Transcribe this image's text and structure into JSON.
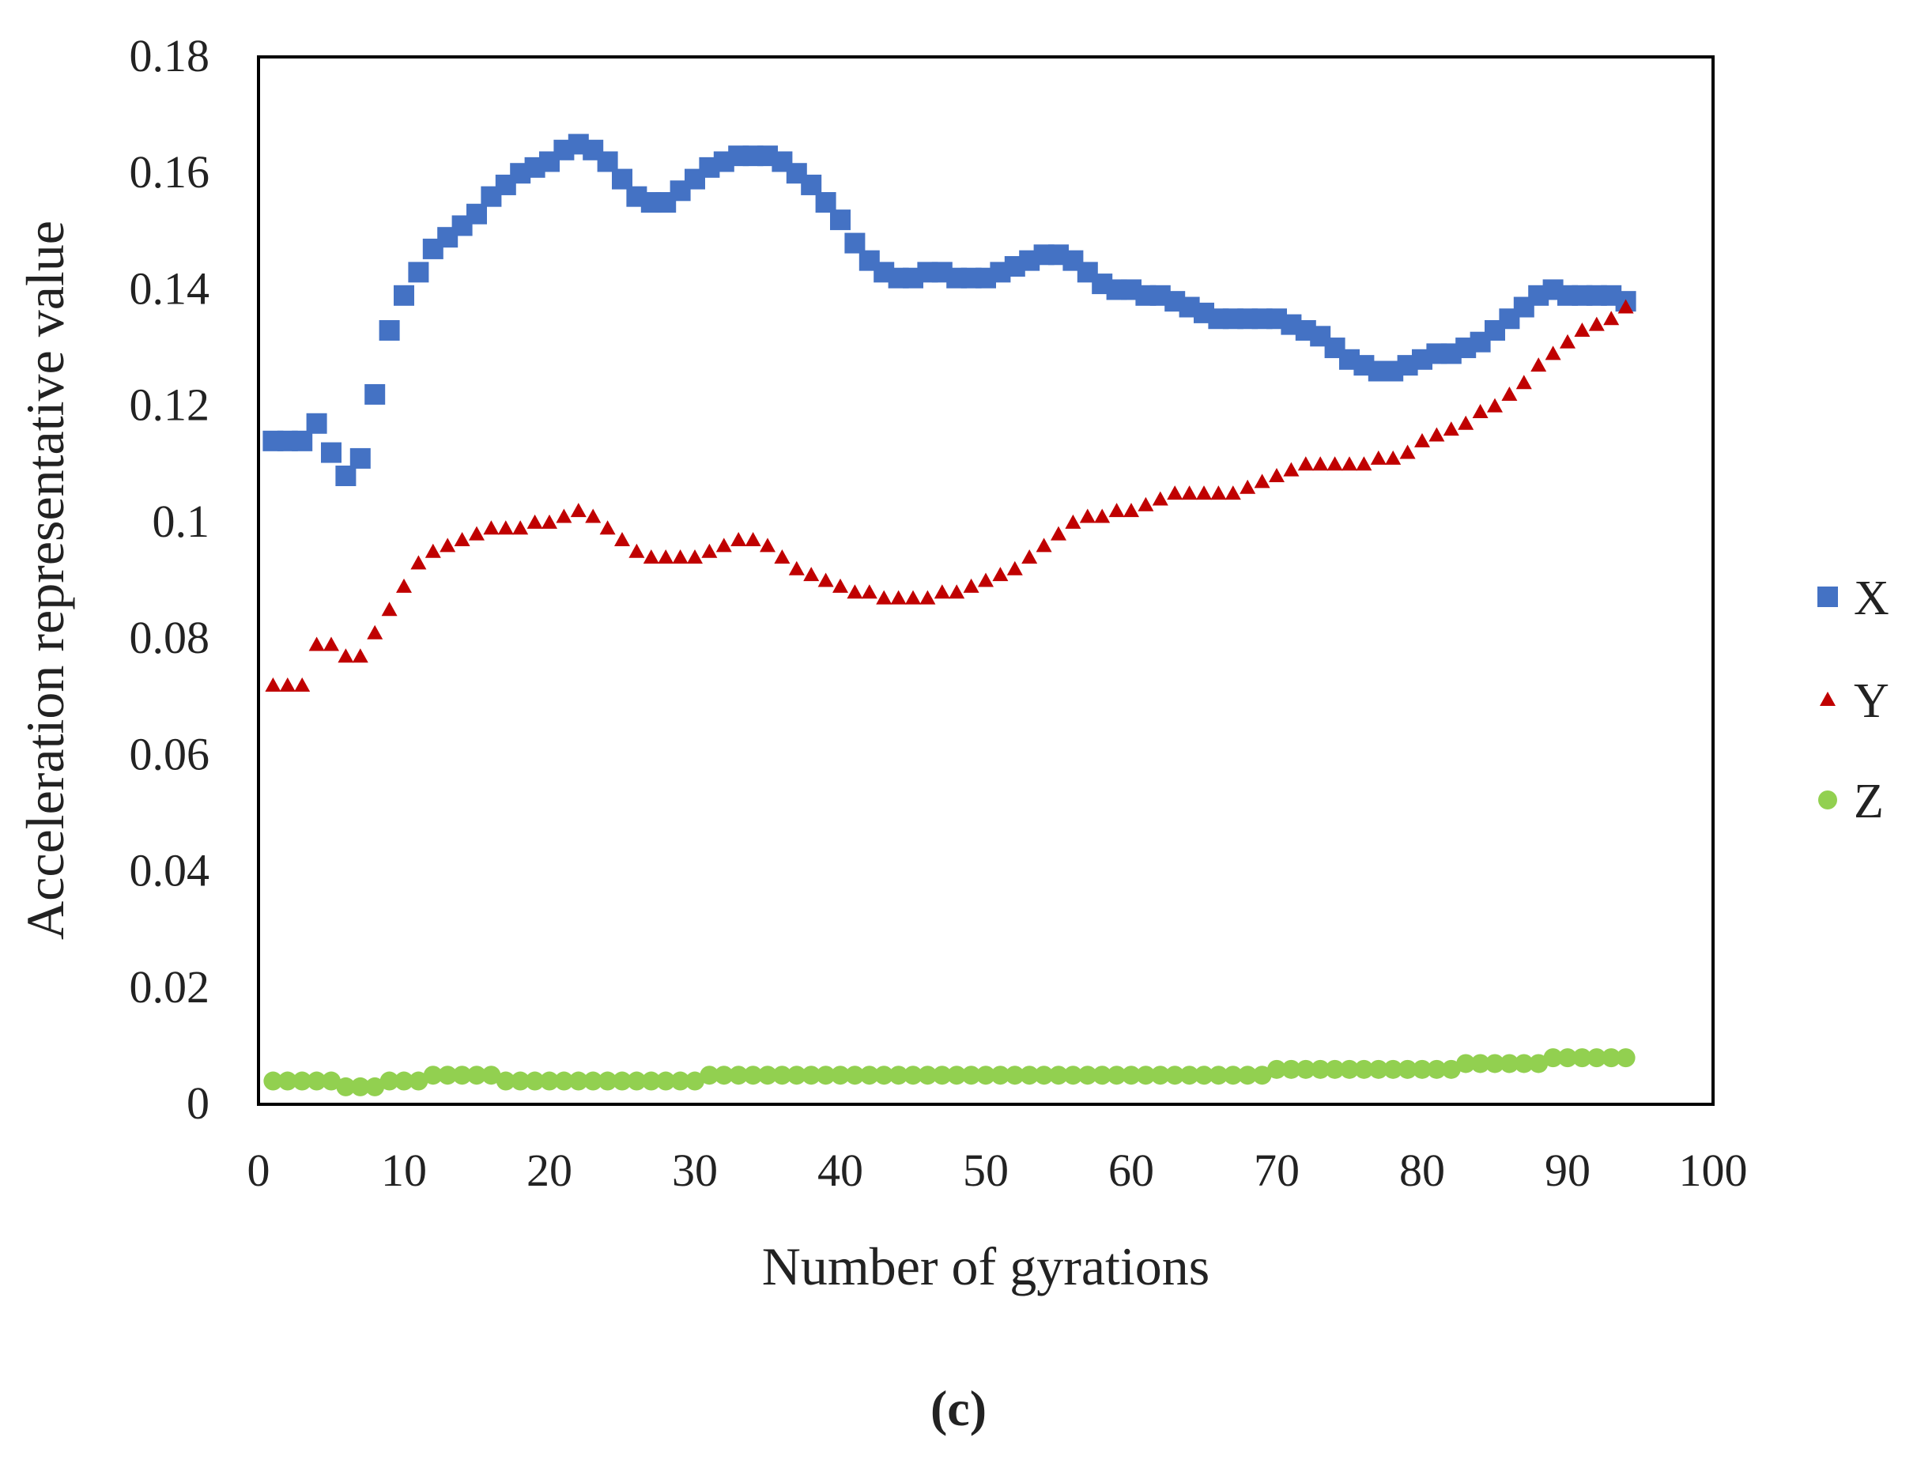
{
  "caption": "(c)",
  "chart_data": {
    "type": "scatter",
    "title": "",
    "xlabel": "Number of gyrations",
    "ylabel": "Acceleration representative value",
    "xlim": [
      0,
      100
    ],
    "ylim": [
      0,
      0.18
    ],
    "x_ticks": [
      "0",
      "10",
      "20",
      "30",
      "40",
      "50",
      "60",
      "70",
      "80",
      "90",
      "100"
    ],
    "y_ticks": [
      "0",
      "0.02",
      "0.04",
      "0.06",
      "0.08",
      "0.1",
      "0.12",
      "0.14",
      "0.16",
      "0.18"
    ],
    "grid": false,
    "legend_position": "right",
    "x": [
      1,
      2,
      3,
      4,
      5,
      6,
      7,
      8,
      9,
      10,
      11,
      12,
      13,
      14,
      15,
      16,
      17,
      18,
      19,
      20,
      21,
      22,
      23,
      24,
      25,
      26,
      27,
      28,
      29,
      30,
      31,
      32,
      33,
      34,
      35,
      36,
      37,
      38,
      39,
      40,
      41,
      42,
      43,
      44,
      45,
      46,
      47,
      48,
      49,
      50,
      51,
      52,
      53,
      54,
      55,
      56,
      57,
      58,
      59,
      60,
      61,
      62,
      63,
      64,
      65,
      66,
      67,
      68,
      69,
      70,
      71,
      72,
      73,
      74,
      75,
      76,
      77,
      78,
      79,
      80,
      81,
      82,
      83,
      84,
      85,
      86,
      87,
      88,
      89,
      90,
      91,
      92,
      93,
      94
    ],
    "series": [
      {
        "name": "X",
        "marker": "square",
        "color": "#4472C4",
        "values": [
          0.114,
          0.114,
          0.114,
          0.117,
          0.112,
          0.108,
          0.111,
          0.122,
          0.133,
          0.139,
          0.143,
          0.147,
          0.149,
          0.151,
          0.153,
          0.156,
          0.158,
          0.16,
          0.161,
          0.162,
          0.164,
          0.165,
          0.164,
          0.162,
          0.159,
          0.156,
          0.155,
          0.155,
          0.157,
          0.159,
          0.161,
          0.162,
          0.163,
          0.163,
          0.163,
          0.162,
          0.16,
          0.158,
          0.155,
          0.152,
          0.148,
          0.145,
          0.143,
          0.142,
          0.142,
          0.143,
          0.143,
          0.142,
          0.142,
          0.142,
          0.143,
          0.144,
          0.145,
          0.146,
          0.146,
          0.145,
          0.143,
          0.141,
          0.14,
          0.14,
          0.139,
          0.139,
          0.138,
          0.137,
          0.136,
          0.135,
          0.135,
          0.135,
          0.135,
          0.135,
          0.134,
          0.133,
          0.132,
          0.13,
          0.128,
          0.127,
          0.126,
          0.126,
          0.127,
          0.128,
          0.129,
          0.129,
          0.13,
          0.131,
          0.133,
          0.135,
          0.137,
          0.139,
          0.14,
          0.139,
          0.139,
          0.139,
          0.139,
          0.138
        ]
      },
      {
        "name": "Y",
        "marker": "triangle",
        "color": "#C00000",
        "values": [
          0.072,
          0.072,
          0.072,
          0.079,
          0.079,
          0.077,
          0.077,
          0.081,
          0.085,
          0.089,
          0.093,
          0.095,
          0.096,
          0.097,
          0.098,
          0.099,
          0.099,
          0.099,
          0.1,
          0.1,
          0.101,
          0.102,
          0.101,
          0.099,
          0.097,
          0.095,
          0.094,
          0.094,
          0.094,
          0.094,
          0.095,
          0.096,
          0.097,
          0.097,
          0.096,
          0.094,
          0.092,
          0.091,
          0.09,
          0.089,
          0.088,
          0.088,
          0.087,
          0.087,
          0.087,
          0.087,
          0.088,
          0.088,
          0.089,
          0.09,
          0.091,
          0.092,
          0.094,
          0.096,
          0.098,
          0.1,
          0.101,
          0.101,
          0.102,
          0.102,
          0.103,
          0.104,
          0.105,
          0.105,
          0.105,
          0.105,
          0.105,
          0.106,
          0.107,
          0.108,
          0.109,
          0.11,
          0.11,
          0.11,
          0.11,
          0.11,
          0.111,
          0.111,
          0.112,
          0.114,
          0.115,
          0.116,
          0.117,
          0.119,
          0.12,
          0.122,
          0.124,
          0.127,
          0.129,
          0.131,
          0.133,
          0.134,
          0.135,
          0.137
        ]
      },
      {
        "name": "Z",
        "marker": "circle",
        "color": "#92D050",
        "values": [
          0.004,
          0.004,
          0.004,
          0.004,
          0.004,
          0.003,
          0.003,
          0.003,
          0.004,
          0.004,
          0.004,
          0.005,
          0.005,
          0.005,
          0.005,
          0.005,
          0.004,
          0.004,
          0.004,
          0.004,
          0.004,
          0.004,
          0.004,
          0.004,
          0.004,
          0.004,
          0.004,
          0.004,
          0.004,
          0.004,
          0.005,
          0.005,
          0.005,
          0.005,
          0.005,
          0.005,
          0.005,
          0.005,
          0.005,
          0.005,
          0.005,
          0.005,
          0.005,
          0.005,
          0.005,
          0.005,
          0.005,
          0.005,
          0.005,
          0.005,
          0.005,
          0.005,
          0.005,
          0.005,
          0.005,
          0.005,
          0.005,
          0.005,
          0.005,
          0.005,
          0.005,
          0.005,
          0.005,
          0.005,
          0.005,
          0.005,
          0.005,
          0.005,
          0.005,
          0.006,
          0.006,
          0.006,
          0.006,
          0.006,
          0.006,
          0.006,
          0.006,
          0.006,
          0.006,
          0.006,
          0.006,
          0.006,
          0.007,
          0.007,
          0.007,
          0.007,
          0.007,
          0.007,
          0.008,
          0.008,
          0.008,
          0.008,
          0.008,
          0.008
        ]
      }
    ]
  }
}
